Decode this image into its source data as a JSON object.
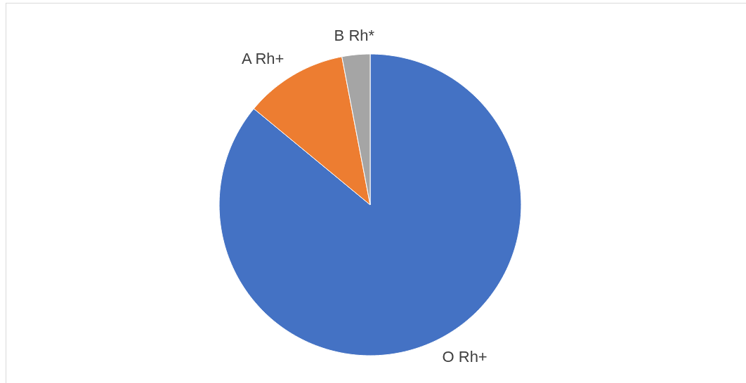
{
  "chart_data": {
    "type": "pie",
    "categories": [
      "O Rh+",
      "A Rh+",
      "B Rh*"
    ],
    "values": [
      86,
      11,
      3
    ],
    "colors": [
      "#4472c4",
      "#ed7d31",
      "#a5a5a5"
    ]
  }
}
